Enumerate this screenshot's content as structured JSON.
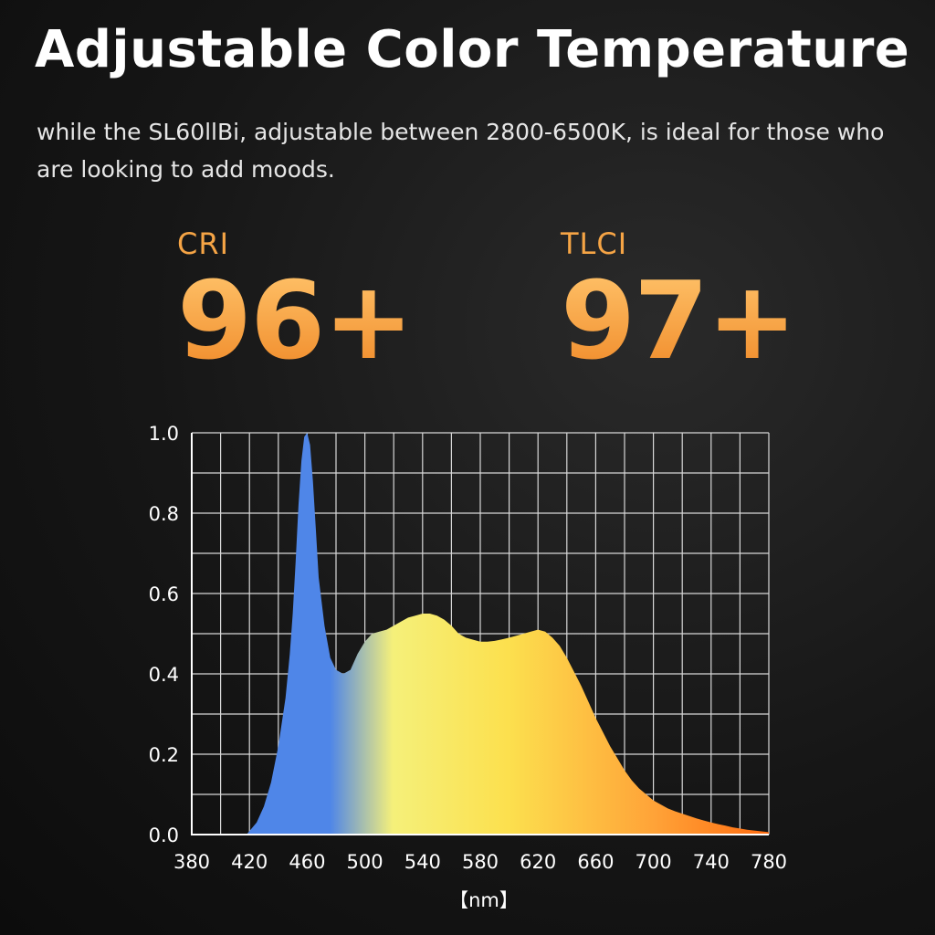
{
  "header": {
    "title": "Adjustable Color Temperature",
    "subtitle": "while the SL60llBi, adjustable between 2800-6500K, is ideal for those who are looking to add moods."
  },
  "metrics": [
    {
      "label": "CRI",
      "value": "96+"
    },
    {
      "label": "TLCI",
      "value": "97+"
    }
  ],
  "chart_data": {
    "type": "area",
    "xlabel": "【nm】",
    "ylabel": "",
    "xlim": [
      380,
      780
    ],
    "ylim": [
      0,
      1.0
    ],
    "x_ticks": [
      380,
      420,
      460,
      500,
      540,
      580,
      620,
      660,
      700,
      740,
      780
    ],
    "x_tick_labels": [
      "380",
      "420",
      "460",
      "500",
      "540",
      "580",
      "620",
      "660",
      "700",
      "740",
      "780"
    ],
    "y_ticks": [
      0,
      0.2,
      0.4,
      0.6,
      0.8,
      1.0
    ],
    "y_tick_labels": [
      "0.0",
      "0.2",
      "0.4",
      "0.6",
      "0.8",
      "1.0"
    ],
    "grid": true,
    "fill_gradient": [
      "#4f86e8",
      "#4f86e8",
      "#f5f07a",
      "#fce04e",
      "#ffa338",
      "#ff6c10"
    ],
    "x": [
      418,
      425,
      430,
      435,
      440,
      445,
      448,
      450,
      452,
      454,
      456,
      458,
      460,
      462,
      464,
      466,
      468,
      472,
      476,
      480,
      485,
      490,
      495,
      500,
      505,
      510,
      515,
      520,
      525,
      530,
      535,
      540,
      545,
      550,
      555,
      560,
      565,
      570,
      575,
      580,
      585,
      590,
      595,
      600,
      605,
      610,
      615,
      620,
      625,
      630,
      635,
      640,
      645,
      650,
      655,
      660,
      665,
      670,
      675,
      680,
      685,
      690,
      695,
      700,
      705,
      710,
      715,
      720,
      725,
      730,
      735,
      740,
      745,
      750,
      755,
      760,
      765,
      770,
      775,
      780
    ],
    "y": [
      0.0,
      0.03,
      0.07,
      0.13,
      0.22,
      0.34,
      0.45,
      0.55,
      0.68,
      0.82,
      0.93,
      0.99,
      1.0,
      0.97,
      0.88,
      0.76,
      0.64,
      0.52,
      0.44,
      0.41,
      0.4,
      0.41,
      0.45,
      0.48,
      0.5,
      0.505,
      0.51,
      0.52,
      0.53,
      0.54,
      0.545,
      0.55,
      0.55,
      0.545,
      0.535,
      0.52,
      0.5,
      0.49,
      0.485,
      0.48,
      0.48,
      0.482,
      0.486,
      0.49,
      0.495,
      0.5,
      0.505,
      0.51,
      0.505,
      0.49,
      0.47,
      0.44,
      0.405,
      0.37,
      0.33,
      0.29,
      0.255,
      0.22,
      0.19,
      0.16,
      0.135,
      0.115,
      0.1,
      0.085,
      0.075,
      0.065,
      0.058,
      0.052,
      0.046,
      0.04,
      0.035,
      0.03,
      0.026,
      0.022,
      0.018,
      0.015,
      0.012,
      0.01,
      0.008,
      0.006
    ]
  }
}
